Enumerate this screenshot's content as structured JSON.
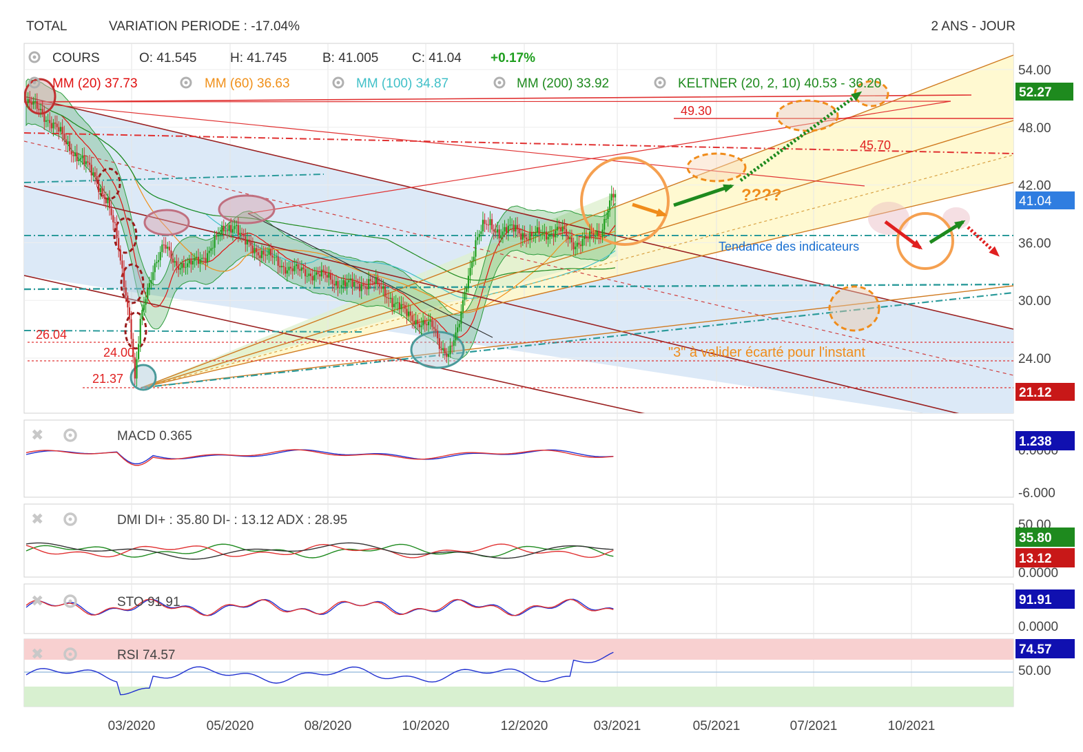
{
  "header": {
    "symbol": "TOTAL",
    "variation": "VARIATION PERIODE : -17.04%",
    "period": "2 ANS - JOUR"
  },
  "quote": {
    "label": "COURS",
    "open": "O: 41.545",
    "high": "H: 41.745",
    "low": "B: 41.005",
    "close": "C: 41.04",
    "change": "+0.17%"
  },
  "indicators": {
    "mm20": "MM (20)  37.73",
    "mm60": "MM (60)  36.63",
    "mm100": "MM (100)  34.87",
    "mm200": "MM (200)  33.92",
    "keltner": "KELTNER (20, 2, 10)  40.53 - 36.20"
  },
  "annotations": {
    "lvl_4930": "49.30",
    "lvl_4570": "45.70",
    "lvl_2604": "26.04",
    "lvl_2400": "24.00",
    "lvl_2137": "21.37",
    "question": "????",
    "tendance": "Tendance des indicateurs",
    "valider": "\"3\" à valider écarté pour l'instant"
  },
  "badges": {
    "top": "52.27",
    "last": "41.04",
    "low": "21.12",
    "macd": "1.238",
    "di_plus": "35.80",
    "di_minus": "13.12",
    "sto": "91.91",
    "rsi": "74.57"
  },
  "panels": {
    "macd": {
      "label": "MACD",
      "value": "0.365",
      "ticks": [
        "0.0000",
        "-6.000"
      ]
    },
    "dmi": {
      "label": "DMI",
      "value": "DI+ : 35.80 DI- : 13.12 ADX : 28.95",
      "ticks": [
        "50.00",
        "0.0000"
      ]
    },
    "sto": {
      "label": "STO",
      "value": "91.91",
      "ticks": [
        "0.0000"
      ]
    },
    "rsi": {
      "label": "RSI",
      "value": "74.57",
      "ticks": [
        "50.00"
      ]
    }
  },
  "colors": {
    "mm20": "#e01010",
    "mm60": "#f0901a",
    "mm100": "#40c0c8",
    "mm200": "#1e8a1e",
    "up": "#1e9e1e",
    "down": "#c83030",
    "keltner_fill": "#2a9a3a",
    "channel_fill": "#d8e8f8",
    "yellow_fill": "#fff8c8"
  },
  "chart_data": {
    "type": "candlestick",
    "ylim": [
      19.5,
      56
    ],
    "y_ticks": [
      "54.00",
      "48.00",
      "42.00",
      "36.00",
      "30.00",
      "24.00"
    ],
    "x_ticks": [
      "03/2020",
      "05/2020",
      "08/2020",
      "10/2020",
      "12/2020",
      "03/2021",
      "05/2021",
      "07/2021",
      "10/2021"
    ],
    "close_profile": [
      [
        0,
        50.5
      ],
      [
        8,
        49.8
      ],
      [
        18,
        47.5
      ],
      [
        28,
        45.0
      ],
      [
        38,
        43.0
      ],
      [
        45,
        40.0
      ],
      [
        50,
        36.5
      ],
      [
        55,
        31.0
      ],
      [
        58,
        26.5
      ],
      [
        60,
        21.4
      ],
      [
        63,
        27.5
      ],
      [
        66,
        30.5
      ],
      [
        70,
        33.5
      ],
      [
        76,
        35.5
      ],
      [
        82,
        34.0
      ],
      [
        90,
        33.5
      ],
      [
        100,
        35.0
      ],
      [
        110,
        37.5
      ],
      [
        115,
        38.0
      ],
      [
        120,
        36.0
      ],
      [
        130,
        35.0
      ],
      [
        140,
        33.8
      ],
      [
        150,
        33.0
      ],
      [
        160,
        32.8
      ],
      [
        170,
        32.0
      ],
      [
        180,
        31.5
      ],
      [
        190,
        32.0
      ],
      [
        200,
        30.5
      ],
      [
        210,
        28.5
      ],
      [
        220,
        27.5
      ],
      [
        225,
        27.0
      ],
      [
        228,
        25.5
      ],
      [
        233,
        24.5
      ],
      [
        238,
        26.5
      ],
      [
        243,
        32.0
      ],
      [
        248,
        36.0
      ],
      [
        252,
        37.5
      ],
      [
        256,
        38.0
      ],
      [
        262,
        37.0
      ],
      [
        270,
        37.5
      ],
      [
        278,
        36.5
      ],
      [
        286,
        37.0
      ],
      [
        294,
        37.3
      ],
      [
        302,
        36.0
      ],
      [
        310,
        36.3
      ],
      [
        317,
        37.2
      ],
      [
        322,
        40.2
      ],
      [
        325,
        41.04
      ]
    ],
    "x_scale_days_per_tick": 1
  }
}
